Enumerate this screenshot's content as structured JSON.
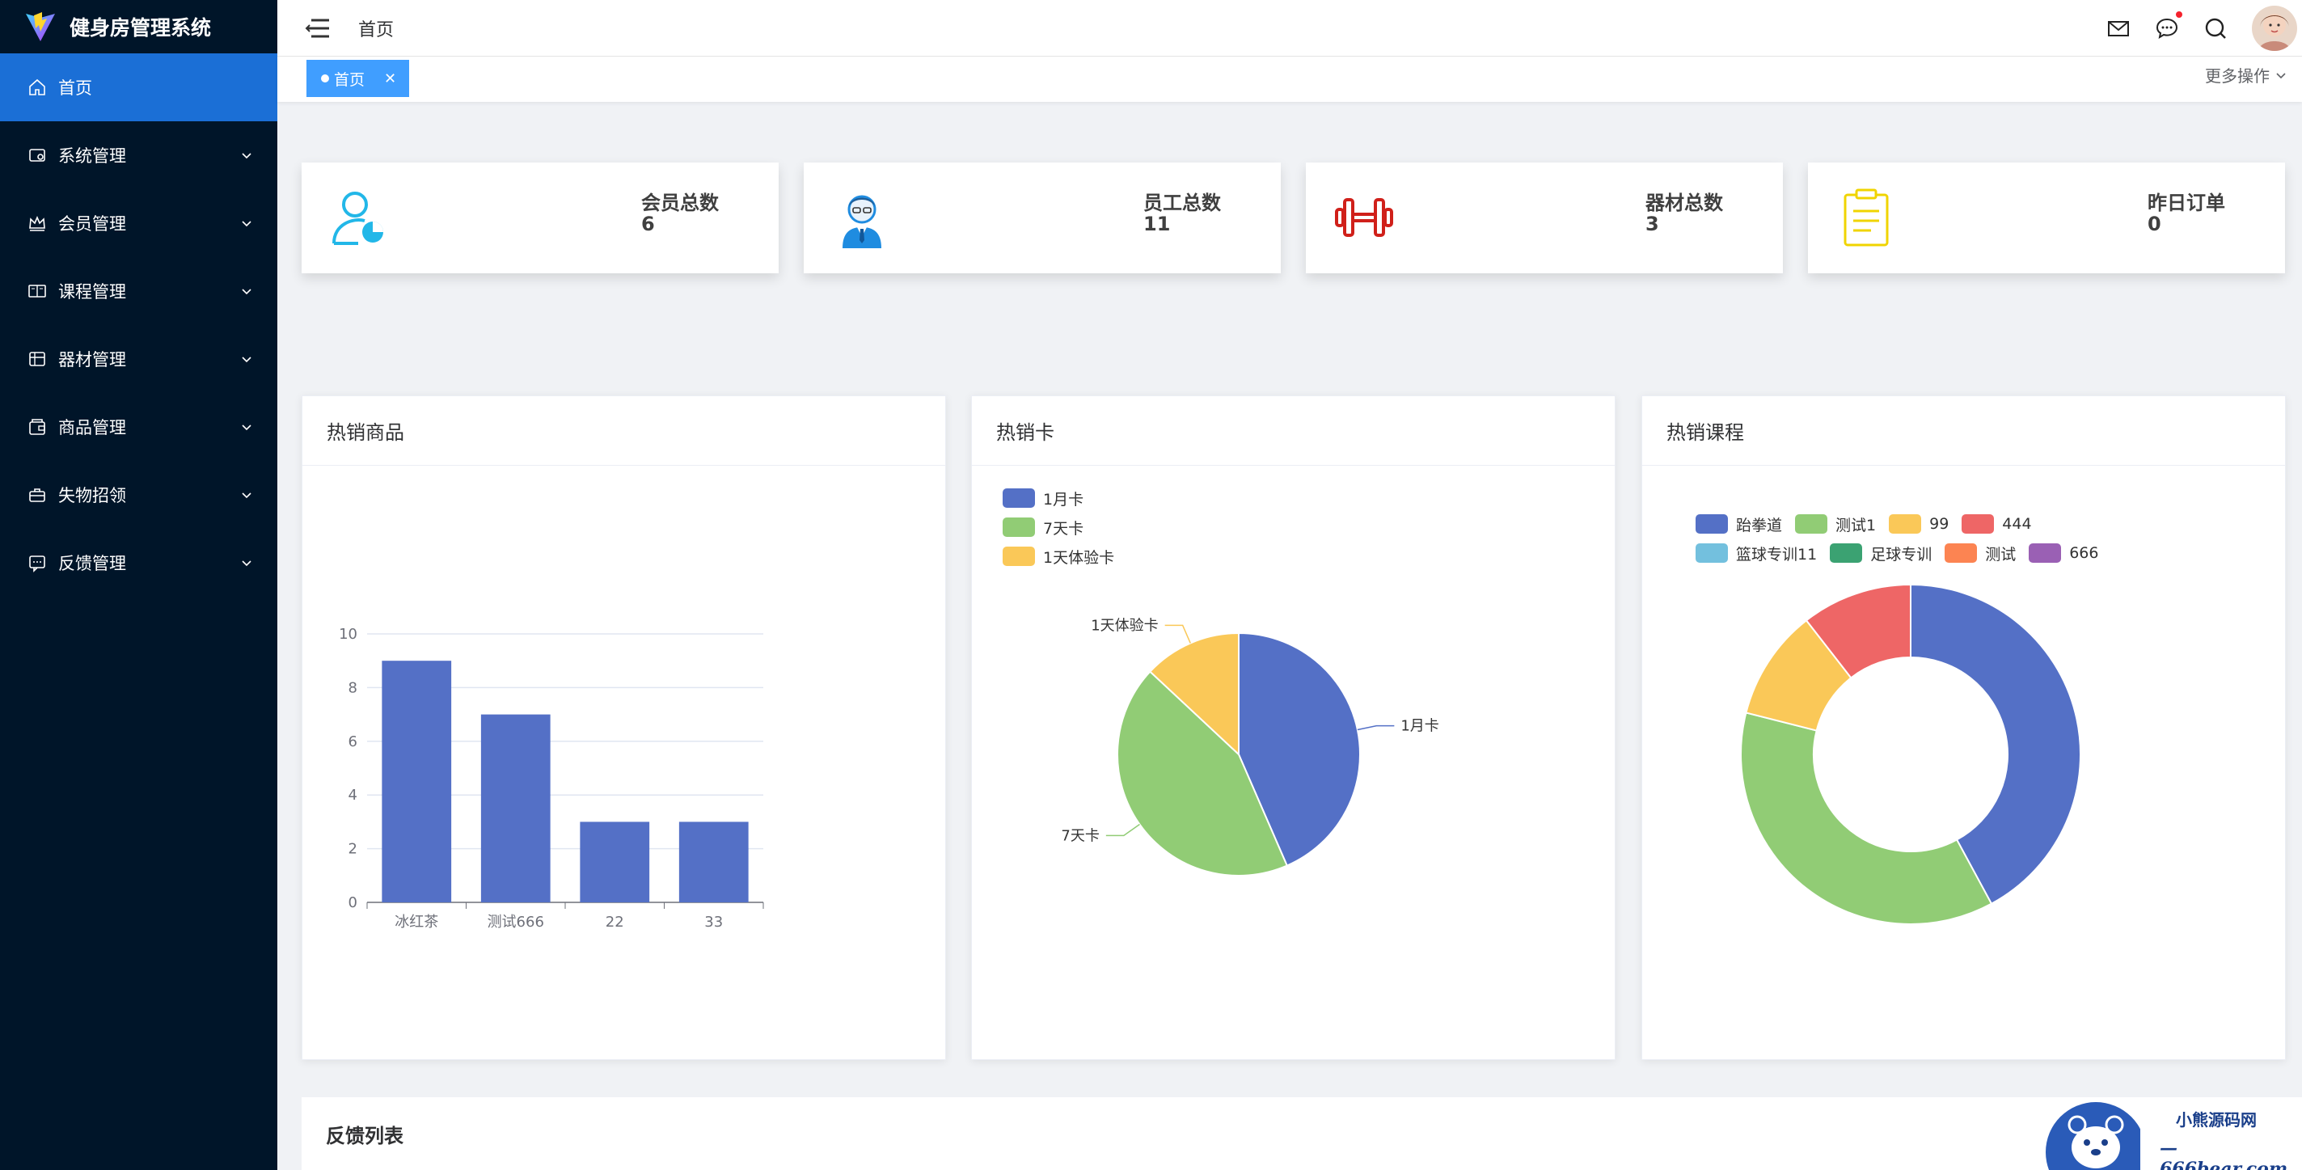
{
  "app": {
    "title": "健身房管理系统"
  },
  "sidebar": {
    "items": [
      {
        "label": "首页",
        "icon": "home-icon",
        "active": true
      },
      {
        "label": "系统管理",
        "icon": "settings-icon"
      },
      {
        "label": "会员管理",
        "icon": "crown-icon"
      },
      {
        "label": "课程管理",
        "icon": "book-icon"
      },
      {
        "label": "器材管理",
        "icon": "equipment-icon"
      },
      {
        "label": "商品管理",
        "icon": "goods-icon"
      },
      {
        "label": "失物招领",
        "icon": "briefcase-icon"
      },
      {
        "label": "反馈管理",
        "icon": "chat-icon"
      }
    ]
  },
  "header": {
    "breadcrumb": "首页"
  },
  "tabs": {
    "active": "首页",
    "more": "更多操作"
  },
  "stats": [
    {
      "title": "会员总数",
      "value": "6",
      "icon": "member-icon",
      "color": "#22b7e8"
    },
    {
      "title": "员工总数",
      "value": "11",
      "icon": "staff-icon",
      "color": "#1f8ce0"
    },
    {
      "title": "器材总数",
      "value": "3",
      "icon": "dumbbell-icon",
      "color": "#d0201a"
    },
    {
      "title": "昨日订单",
      "value": "0",
      "icon": "clipboard-icon",
      "color": "#f0d400"
    }
  ],
  "panels": {
    "goods": "热销商品",
    "cards": "热销卡",
    "courses": "热销课程"
  },
  "feedback": {
    "title": "反馈列表"
  },
  "watermark": {
    "line1": "小熊源码网",
    "line2": "—666bear.com—"
  },
  "chart_data": [
    {
      "type": "bar",
      "title": "热销商品",
      "categories": [
        "冰红茶",
        "测试666",
        "22",
        "33"
      ],
      "values": [
        9,
        7,
        3,
        3
      ],
      "ylim": [
        0,
        10
      ],
      "yticks": [
        0,
        2,
        4,
        6,
        8,
        10
      ],
      "color": "#5470c6"
    },
    {
      "type": "pie",
      "title": "热销卡",
      "legend": "top-left",
      "series": [
        {
          "name": "1月卡",
          "value": 5,
          "color": "#5470c6"
        },
        {
          "name": "7天卡",
          "value": 5,
          "color": "#91cc75"
        },
        {
          "name": "1天体验卡",
          "value": 1.5,
          "color": "#fac858"
        }
      ]
    },
    {
      "type": "pie",
      "subtype": "donut",
      "title": "热销课程",
      "legend": "top-left",
      "series": [
        {
          "name": "跆拳道",
          "value": 4,
          "color": "#5470c6"
        },
        {
          "name": "测试1",
          "value": 3.5,
          "color": "#91cc75"
        },
        {
          "name": "99",
          "value": 1,
          "color": "#fac858"
        },
        {
          "name": "444",
          "value": 1,
          "color": "#ee6666"
        },
        {
          "name": "篮球专训11",
          "value": 0,
          "color": "#73c0de"
        },
        {
          "name": "足球专训",
          "value": 0,
          "color": "#3ba272"
        },
        {
          "name": "测试",
          "value": 0,
          "color": "#fc8452"
        },
        {
          "name": "666",
          "value": 0,
          "color": "#9a60b4"
        }
      ]
    }
  ]
}
